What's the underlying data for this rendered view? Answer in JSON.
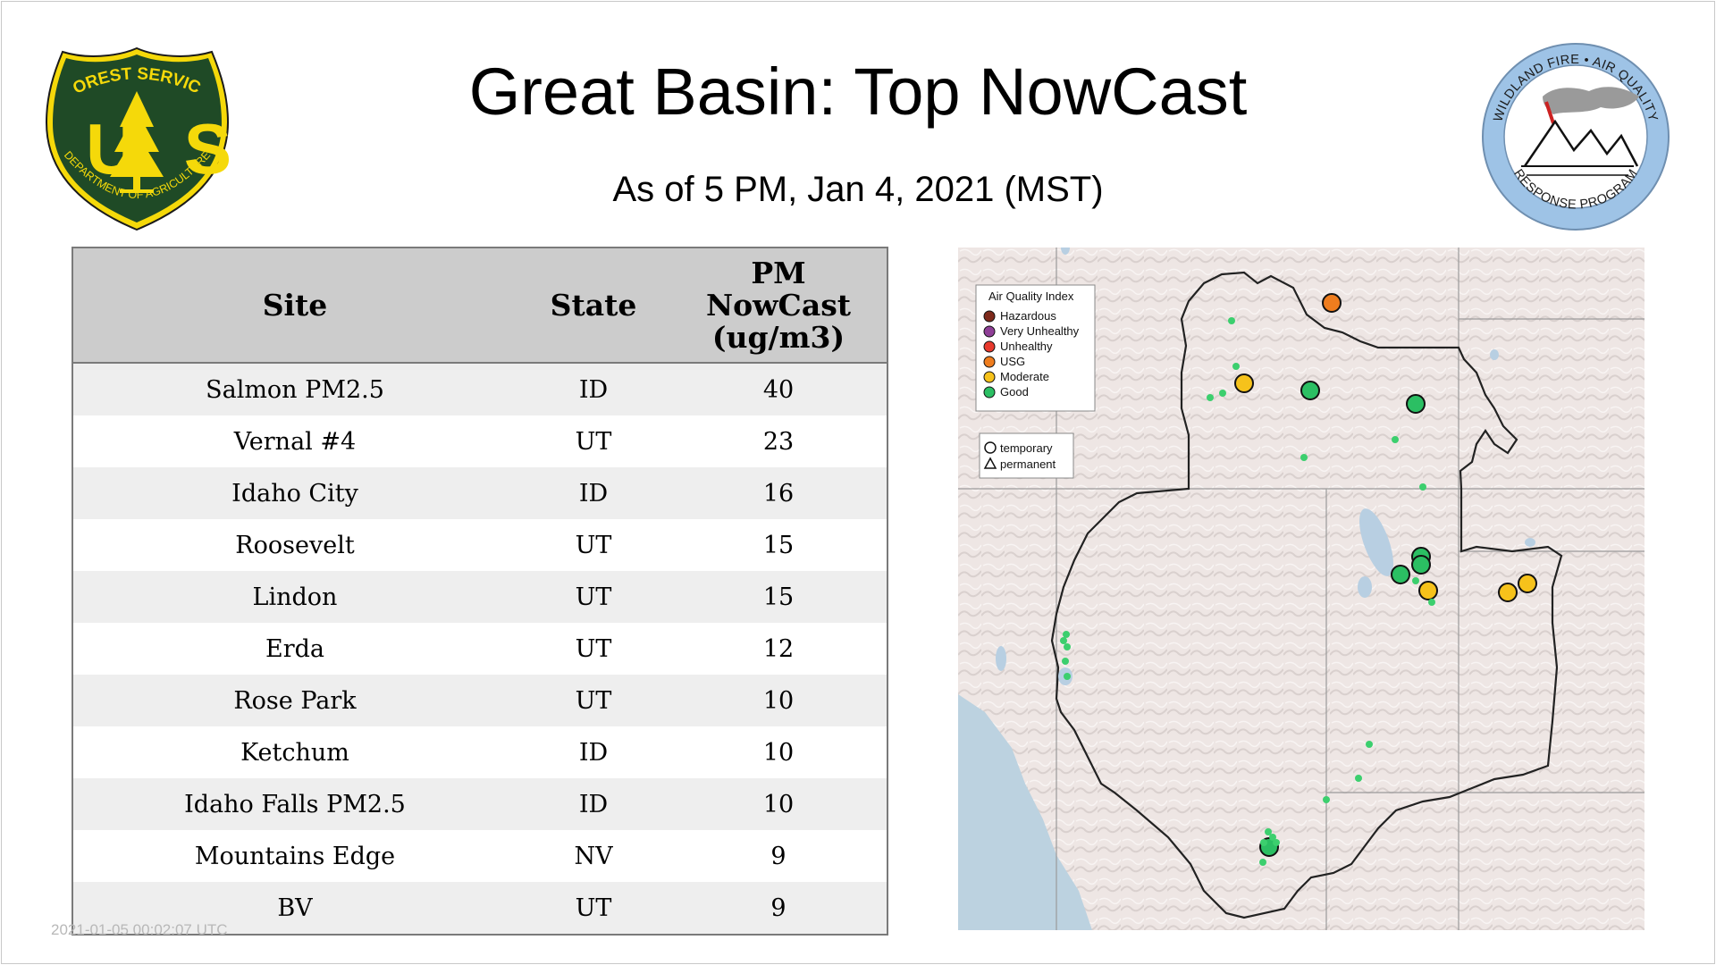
{
  "header": {
    "title": "Great Basin: Top NowCast",
    "subtitle": "As of  5 PM, Jan  4, 2021 (MST)"
  },
  "logos": {
    "forest_service": {
      "top_text": "FOREST SERVICE",
      "letters": "US",
      "bottom_text": "DEPARTMENT OF AGRICULTURE",
      "icon": "pine-tree-icon",
      "colors": {
        "shield": "#1f4a26",
        "accent": "#f5d90a"
      }
    },
    "wildland_fire": {
      "ring_text_top": "WILDLAND FIRE • AIR QUALITY",
      "ring_text_bottom": "RESPONSE PROGRAM",
      "icon": "mountains-smoke-icon",
      "colors": {
        "ring": "#9ec3e6",
        "smoke": "#9a9a9a",
        "flag": "#cc2222"
      }
    }
  },
  "table": {
    "headers": {
      "site": "Site",
      "state": "State",
      "pm_line1": "PM",
      "pm_line2": "NowCast",
      "pm_line3": "(ug/m3)"
    },
    "rows": [
      {
        "site": "Salmon PM2.5",
        "state": "ID",
        "value": "40"
      },
      {
        "site": "Vernal #4",
        "state": "UT",
        "value": "23"
      },
      {
        "site": "Idaho City",
        "state": "ID",
        "value": "16"
      },
      {
        "site": "Roosevelt",
        "state": "UT",
        "value": "15"
      },
      {
        "site": "Lindon",
        "state": "UT",
        "value": "15"
      },
      {
        "site": "Erda",
        "state": "UT",
        "value": "12"
      },
      {
        "site": "Rose Park",
        "state": "UT",
        "value": "10"
      },
      {
        "site": "Ketchum",
        "state": "ID",
        "value": "10"
      },
      {
        "site": "Idaho Falls PM2.5",
        "state": "ID",
        "value": "10"
      },
      {
        "site": "Mountains Edge",
        "state": "NV",
        "value": "9"
      },
      {
        "site": "BV",
        "state": "UT",
        "value": "9"
      }
    ]
  },
  "map": {
    "legend": {
      "title": "Air Quality Index",
      "items": [
        {
          "label": "Hazardous",
          "color": "#7e2a1c"
        },
        {
          "label": "Very Unhealthy",
          "color": "#8f3f97"
        },
        {
          "label": "Unhealthy",
          "color": "#e8392d"
        },
        {
          "label": "USG",
          "color": "#ef7d1e"
        },
        {
          "label": "Moderate",
          "color": "#f6c21b"
        },
        {
          "label": "Good",
          "color": "#2bbf63"
        }
      ],
      "shapes": {
        "temporary": "temporary",
        "permanent": "permanent"
      }
    }
  },
  "timestamp": "2021-01-05 00:02:07 UTC"
}
